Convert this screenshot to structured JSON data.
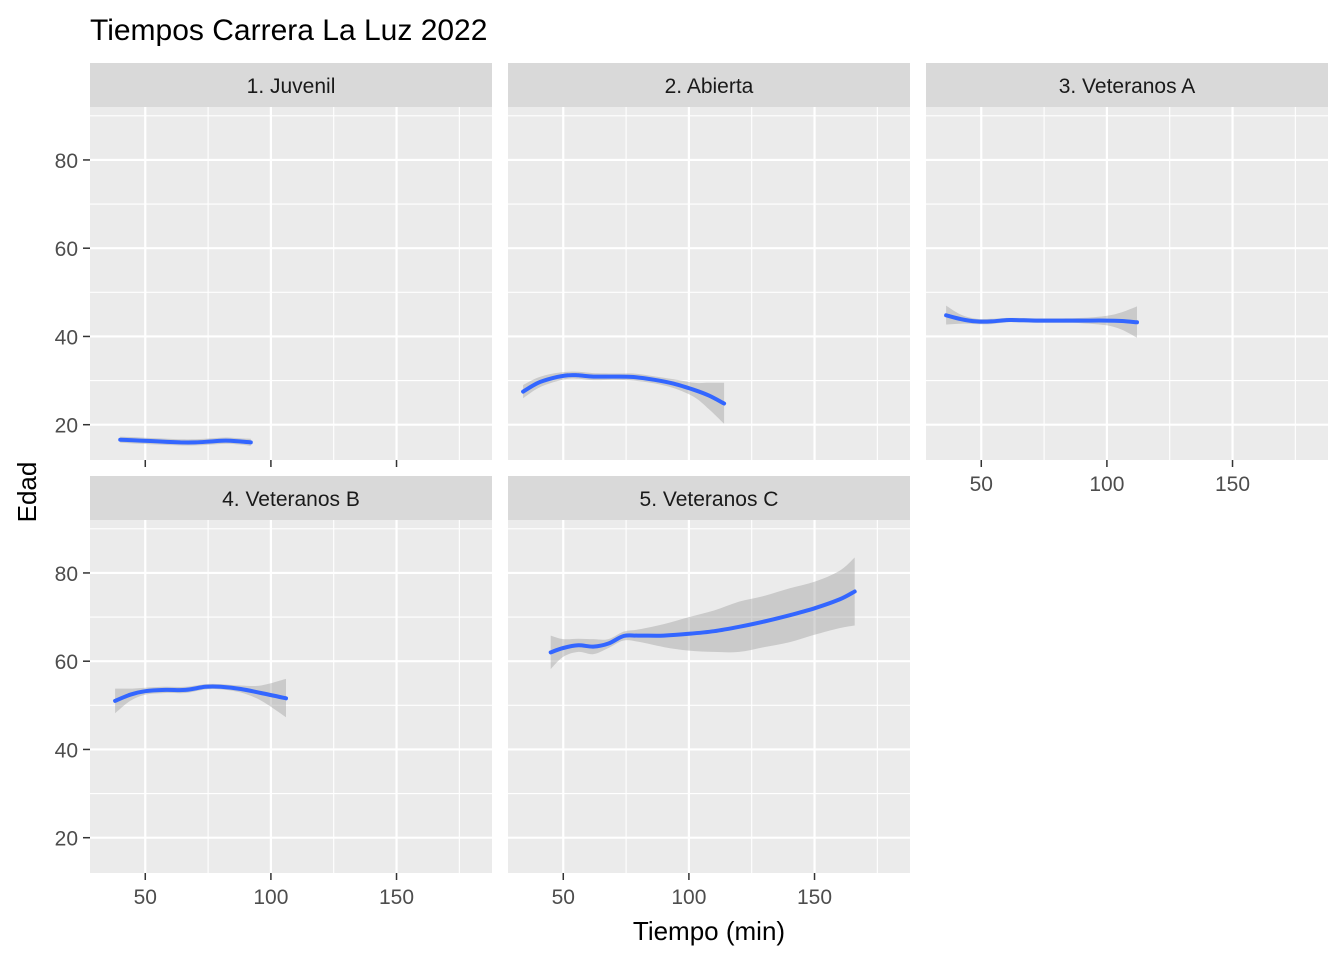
{
  "chart_data": {
    "type": "line",
    "title": "Tiempos Carrera La Luz  2022",
    "xlabel": "Tiempo (min)",
    "ylabel": "Edad",
    "xlim": [
      28,
      188
    ],
    "ylim": [
      12,
      92
    ],
    "xticks": [
      50,
      100,
      150
    ],
    "yticks": [
      20,
      40,
      60,
      80
    ],
    "xminor": [
      25,
      75,
      125,
      175
    ],
    "yminor": [
      30,
      50,
      70,
      90
    ],
    "grid": true,
    "colors": {
      "line": "#3366ff",
      "ribbon": "#999999",
      "panel": "#ebebeb",
      "strip": "#d9d9d9",
      "grid": "#ffffff"
    },
    "panels": [
      {
        "label": "1. Juvenil",
        "line": [
          [
            40,
            16.6
          ],
          [
            48,
            16.4
          ],
          [
            56,
            16.2
          ],
          [
            64,
            16.0
          ],
          [
            70,
            16.0
          ],
          [
            76,
            16.2
          ],
          [
            82,
            16.4
          ],
          [
            88,
            16.2
          ],
          [
            92,
            16.0
          ]
        ],
        "ribbon_upper": [
          [
            40,
            17.3
          ],
          [
            48,
            17.1
          ],
          [
            56,
            16.9
          ],
          [
            64,
            16.7
          ],
          [
            70,
            16.7
          ],
          [
            76,
            16.9
          ],
          [
            82,
            17.1
          ],
          [
            88,
            16.9
          ],
          [
            92,
            16.8
          ]
        ],
        "ribbon_lower": [
          [
            40,
            15.9
          ],
          [
            48,
            15.7
          ],
          [
            56,
            15.5
          ],
          [
            64,
            15.3
          ],
          [
            70,
            15.3
          ],
          [
            76,
            15.5
          ],
          [
            82,
            15.7
          ],
          [
            88,
            15.5
          ],
          [
            92,
            15.2
          ]
        ]
      },
      {
        "label": "2. Abierta",
        "line": [
          [
            34,
            27.5
          ],
          [
            40,
            29.5
          ],
          [
            46,
            30.6
          ],
          [
            52,
            31.2
          ],
          [
            56,
            31.2
          ],
          [
            62,
            30.9
          ],
          [
            70,
            30.9
          ],
          [
            78,
            30.8
          ],
          [
            86,
            30.2
          ],
          [
            94,
            29.3
          ],
          [
            102,
            27.9
          ],
          [
            108,
            26.6
          ],
          [
            114,
            24.8
          ]
        ],
        "ribbon_upper": [
          [
            34,
            29.0
          ],
          [
            40,
            30.7
          ],
          [
            46,
            31.6
          ],
          [
            52,
            32.0
          ],
          [
            56,
            32.0
          ],
          [
            62,
            31.7
          ],
          [
            70,
            31.6
          ],
          [
            78,
            31.6
          ],
          [
            86,
            31.0
          ],
          [
            94,
            30.3
          ],
          [
            102,
            29.5
          ],
          [
            108,
            29.5
          ],
          [
            114,
            29.5
          ]
        ],
        "ribbon_lower": [
          [
            34,
            26.0
          ],
          [
            40,
            28.3
          ],
          [
            46,
            29.6
          ],
          [
            52,
            30.4
          ],
          [
            56,
            30.4
          ],
          [
            62,
            30.1
          ],
          [
            70,
            30.2
          ],
          [
            78,
            30.0
          ],
          [
            86,
            29.4
          ],
          [
            94,
            28.3
          ],
          [
            102,
            26.3
          ],
          [
            108,
            23.5
          ],
          [
            114,
            20.2
          ]
        ]
      },
      {
        "label": "3. Veteranos A",
        "line": [
          [
            36,
            44.8
          ],
          [
            42,
            43.9
          ],
          [
            48,
            43.4
          ],
          [
            54,
            43.4
          ],
          [
            60,
            43.7
          ],
          [
            64,
            43.7
          ],
          [
            72,
            43.6
          ],
          [
            80,
            43.6
          ],
          [
            90,
            43.6
          ],
          [
            100,
            43.6
          ],
          [
            106,
            43.5
          ],
          [
            112,
            43.2
          ]
        ],
        "ribbon_upper": [
          [
            36,
            47.0
          ],
          [
            42,
            44.9
          ],
          [
            48,
            44.0
          ],
          [
            54,
            44.0
          ],
          [
            60,
            44.2
          ],
          [
            64,
            44.2
          ],
          [
            72,
            44.1
          ],
          [
            80,
            44.1
          ],
          [
            90,
            44.2
          ],
          [
            100,
            44.7
          ],
          [
            106,
            45.5
          ],
          [
            112,
            46.8
          ]
        ],
        "ribbon_lower": [
          [
            36,
            42.7
          ],
          [
            42,
            42.9
          ],
          [
            48,
            42.8
          ],
          [
            54,
            42.8
          ],
          [
            60,
            43.2
          ],
          [
            64,
            43.2
          ],
          [
            72,
            43.1
          ],
          [
            80,
            43.1
          ],
          [
            90,
            43.0
          ],
          [
            100,
            42.5
          ],
          [
            106,
            41.5
          ],
          [
            112,
            39.7
          ]
        ]
      },
      {
        "label": "4. Veteranos B",
        "line": [
          [
            38,
            51.0
          ],
          [
            44,
            52.4
          ],
          [
            50,
            53.2
          ],
          [
            58,
            53.5
          ],
          [
            66,
            53.5
          ],
          [
            74,
            54.2
          ],
          [
            80,
            54.2
          ],
          [
            88,
            53.7
          ],
          [
            96,
            52.8
          ],
          [
            106,
            51.6
          ]
        ],
        "ribbon_upper": [
          [
            38,
            53.8
          ],
          [
            44,
            53.8
          ],
          [
            50,
            54.0
          ],
          [
            58,
            54.2
          ],
          [
            66,
            54.2
          ],
          [
            74,
            54.8
          ],
          [
            80,
            54.8
          ],
          [
            88,
            54.5
          ],
          [
            96,
            54.5
          ],
          [
            106,
            56.0
          ]
        ],
        "ribbon_lower": [
          [
            38,
            48.2
          ],
          [
            44,
            51.0
          ],
          [
            50,
            52.4
          ],
          [
            58,
            52.8
          ],
          [
            66,
            52.8
          ],
          [
            74,
            53.6
          ],
          [
            80,
            53.6
          ],
          [
            88,
            52.9
          ],
          [
            96,
            51.1
          ],
          [
            106,
            47.3
          ]
        ]
      },
      {
        "label": "5. Veteranos C",
        "line": [
          [
            45,
            62.0
          ],
          [
            50,
            63.0
          ],
          [
            56,
            63.6
          ],
          [
            62,
            63.3
          ],
          [
            68,
            64.0
          ],
          [
            74,
            65.7
          ],
          [
            80,
            65.8
          ],
          [
            90,
            65.8
          ],
          [
            100,
            66.2
          ],
          [
            110,
            66.8
          ],
          [
            120,
            67.8
          ],
          [
            130,
            69.0
          ],
          [
            140,
            70.4
          ],
          [
            150,
            72.0
          ],
          [
            160,
            74.0
          ],
          [
            166,
            75.8
          ]
        ],
        "ribbon_upper": [
          [
            45,
            65.8
          ],
          [
            50,
            65.0
          ],
          [
            56,
            65.1
          ],
          [
            62,
            65.0
          ],
          [
            68,
            65.0
          ],
          [
            74,
            66.7
          ],
          [
            80,
            67.2
          ],
          [
            90,
            68.4
          ],
          [
            100,
            70.0
          ],
          [
            110,
            71.5
          ],
          [
            120,
            73.5
          ],
          [
            130,
            74.8
          ],
          [
            140,
            76.5
          ],
          [
            150,
            78.0
          ],
          [
            160,
            80.5
          ],
          [
            166,
            83.5
          ]
        ],
        "ribbon_lower": [
          [
            45,
            58.2
          ],
          [
            50,
            61.0
          ],
          [
            56,
            62.1
          ],
          [
            62,
            61.6
          ],
          [
            68,
            63.0
          ],
          [
            74,
            64.7
          ],
          [
            80,
            64.4
          ],
          [
            90,
            63.2
          ],
          [
            100,
            62.4
          ],
          [
            110,
            62.1
          ],
          [
            120,
            62.1
          ],
          [
            130,
            63.2
          ],
          [
            140,
            64.3
          ],
          [
            150,
            66.0
          ],
          [
            160,
            67.5
          ],
          [
            166,
            68.1
          ]
        ]
      }
    ]
  }
}
